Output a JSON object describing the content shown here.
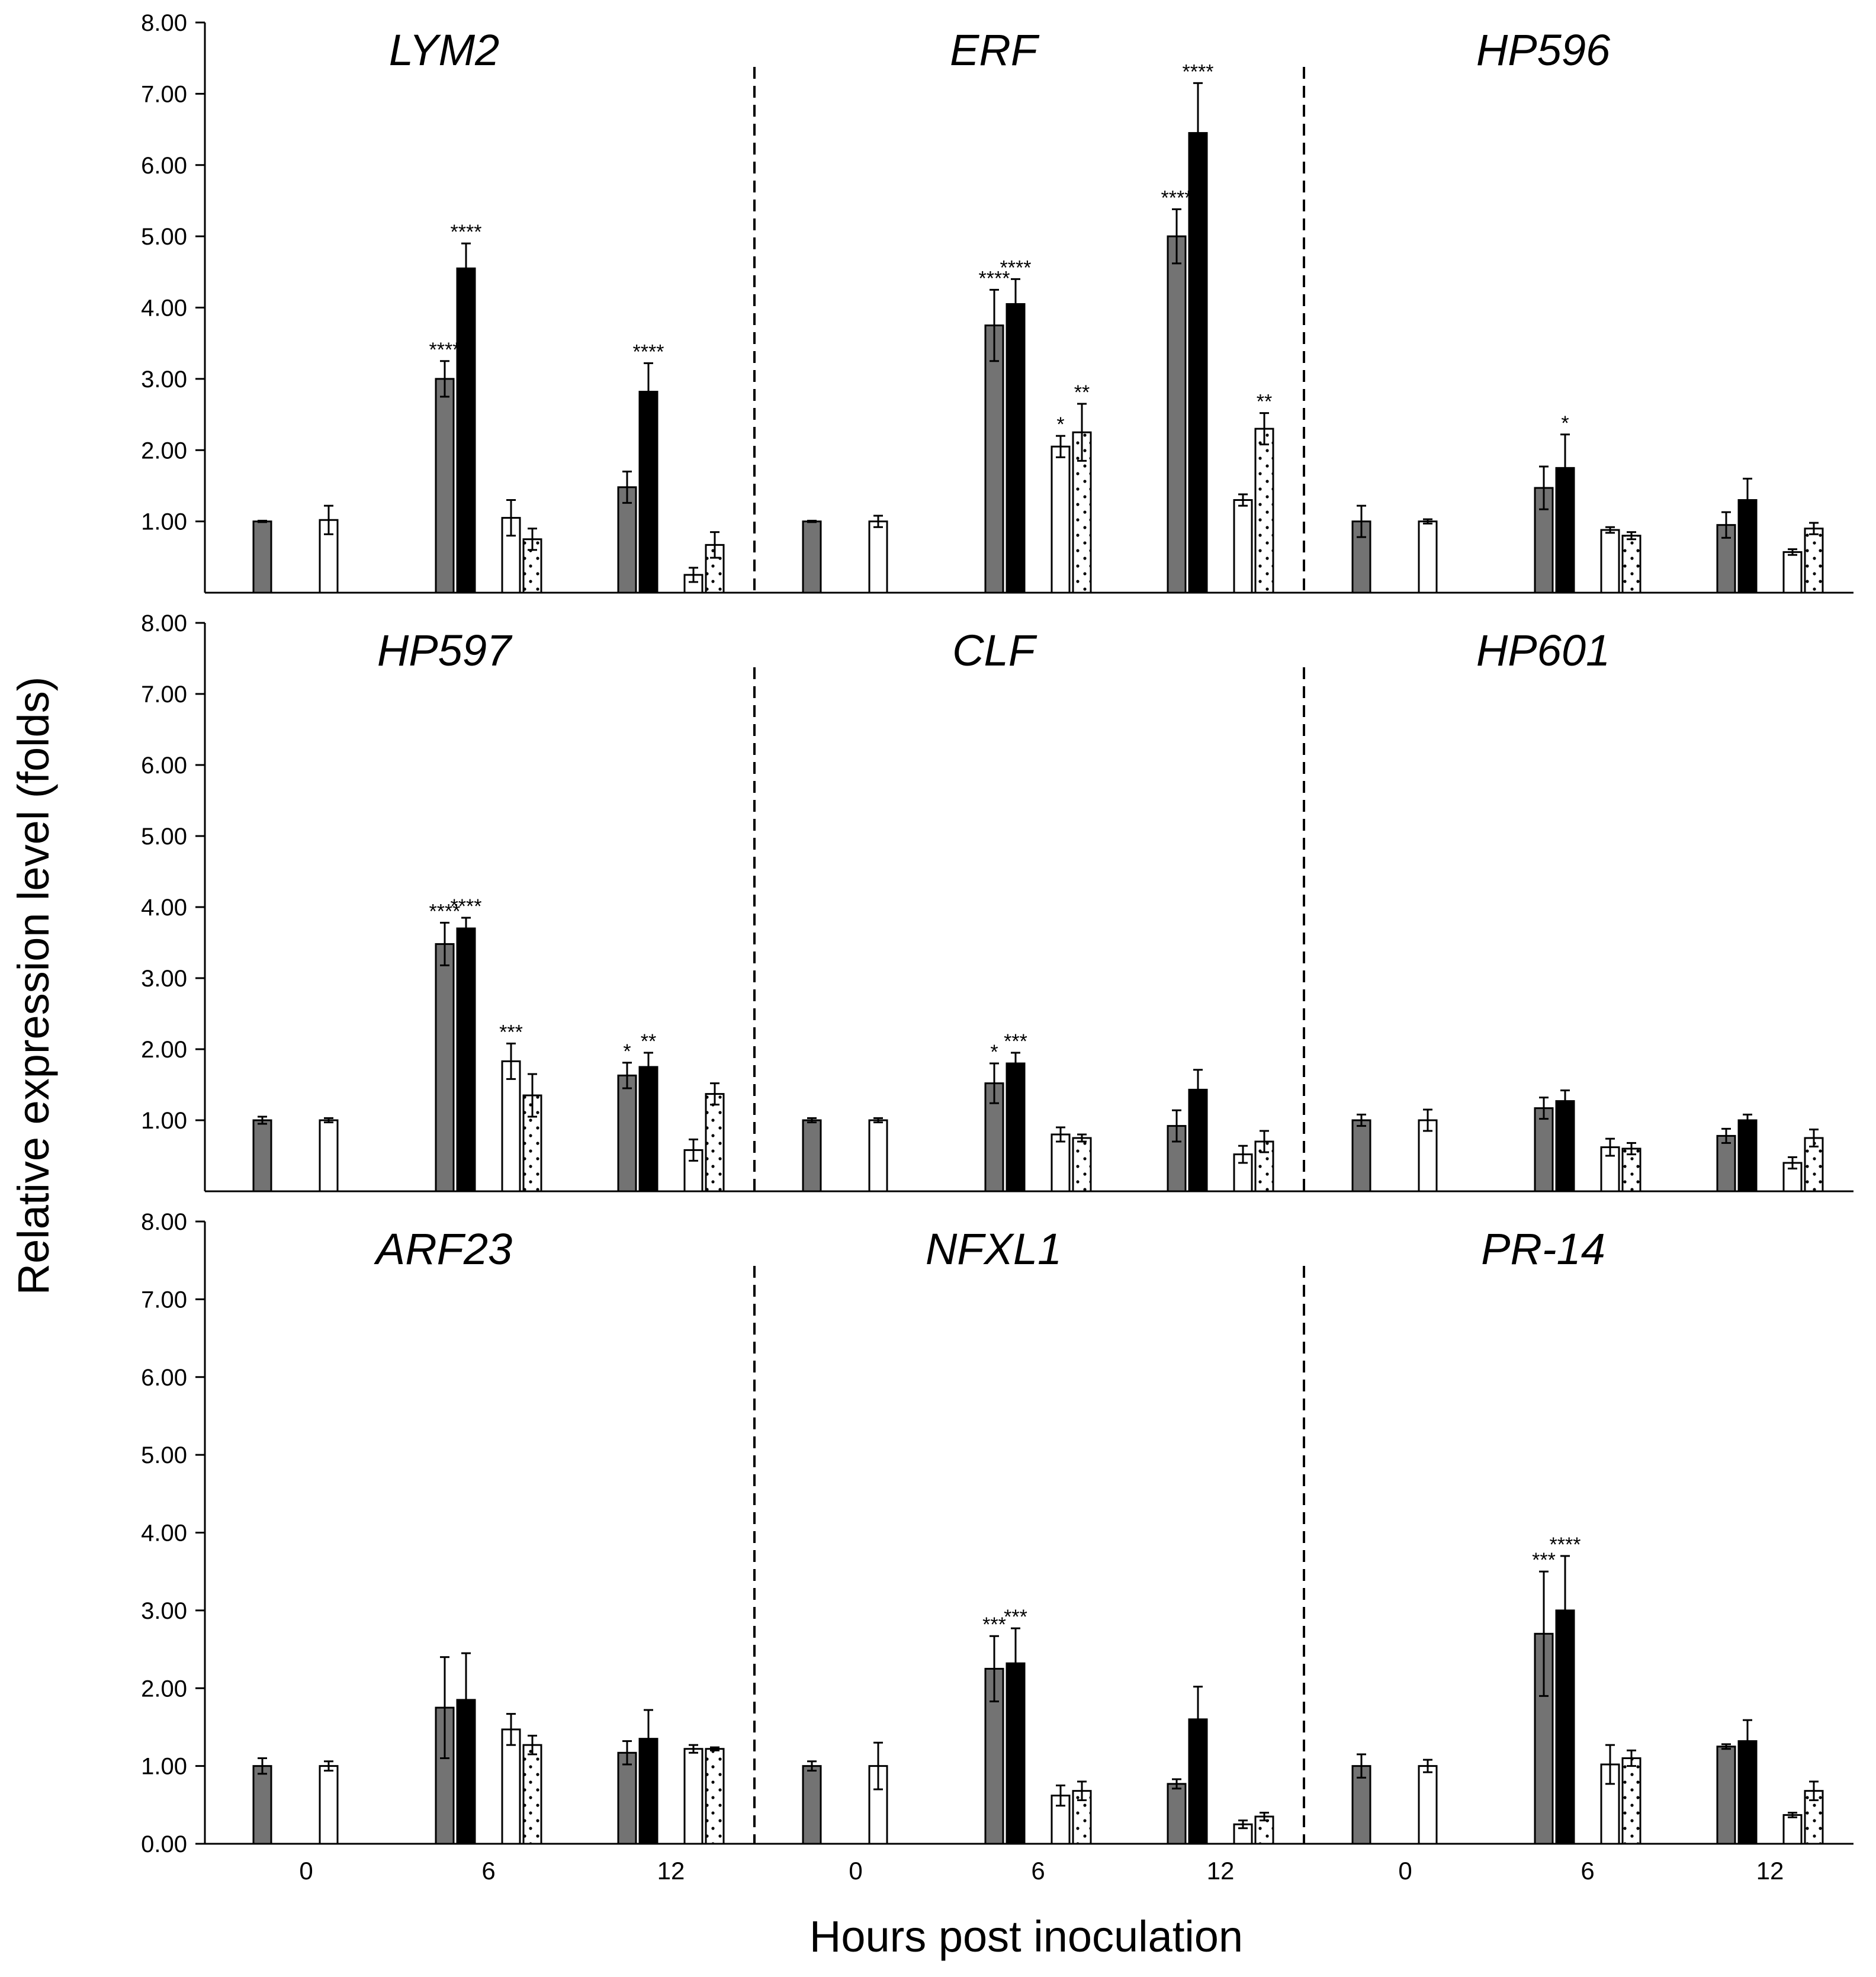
{
  "figure": {
    "ylabel": "Relative expression level (folds)",
    "xlabel": "Hours post inoculation",
    "colors": {
      "gray": "#737373",
      "black": "#000000",
      "white": "#ffffff",
      "axis": "#000000"
    }
  },
  "chart_data": {
    "type": "bar",
    "timepoints": [
      "0",
      "6",
      "12"
    ],
    "bar_styles": [
      "gray",
      "black",
      "white",
      "dotted"
    ],
    "rows": [
      {
        "ylim": [
          0,
          8
        ],
        "ticks": [
          "8.00",
          "7.00",
          "6.00",
          "5.00",
          "4.00",
          "3.00",
          "2.00",
          "1.00"
        ],
        "panels": [
          {
            "title": "LYM2",
            "groups": [
              {
                "bars": [
                  {
                    "v": 1.0,
                    "e": 0.01,
                    "s": ""
                  },
                  null,
                  {
                    "v": 1.02,
                    "e": 0.2,
                    "s": ""
                  },
                  null
                ]
              },
              {
                "bars": [
                  {
                    "v": 3.0,
                    "e": 0.25,
                    "s": "****"
                  },
                  {
                    "v": 4.55,
                    "e": 0.35,
                    "s": "****"
                  },
                  {
                    "v": 1.05,
                    "e": 0.25,
                    "s": ""
                  },
                  {
                    "v": 0.75,
                    "e": 0.15,
                    "s": ""
                  }
                ]
              },
              {
                "bars": [
                  {
                    "v": 1.48,
                    "e": 0.22,
                    "s": ""
                  },
                  {
                    "v": 2.82,
                    "e": 0.4,
                    "s": "****"
                  },
                  {
                    "v": 0.25,
                    "e": 0.1,
                    "s": ""
                  },
                  {
                    "v": 0.67,
                    "e": 0.18,
                    "s": ""
                  }
                ]
              }
            ]
          },
          {
            "title": "ERF",
            "groups": [
              {
                "bars": [
                  {
                    "v": 1.0,
                    "e": 0.01,
                    "s": ""
                  },
                  null,
                  {
                    "v": 1.0,
                    "e": 0.08,
                    "s": ""
                  },
                  null
                ]
              },
              {
                "bars": [
                  {
                    "v": 3.75,
                    "e": 0.5,
                    "s": "****"
                  },
                  {
                    "v": 4.05,
                    "e": 0.35,
                    "s": "****"
                  },
                  {
                    "v": 2.05,
                    "e": 0.15,
                    "s": "*"
                  },
                  {
                    "v": 2.25,
                    "e": 0.4,
                    "s": "**"
                  }
                ]
              },
              {
                "bars": [
                  {
                    "v": 5.0,
                    "e": 0.38,
                    "s": "****"
                  },
                  {
                    "v": 6.45,
                    "e": 0.7,
                    "s": "****"
                  },
                  {
                    "v": 1.3,
                    "e": 0.08,
                    "s": ""
                  },
                  {
                    "v": 2.3,
                    "e": 0.22,
                    "s": "**"
                  }
                ]
              }
            ]
          },
          {
            "title": "HP596",
            "groups": [
              {
                "bars": [
                  {
                    "v": 1.0,
                    "e": 0.22,
                    "s": ""
                  },
                  null,
                  {
                    "v": 1.0,
                    "e": 0.03,
                    "s": ""
                  },
                  null
                ]
              },
              {
                "bars": [
                  {
                    "v": 1.47,
                    "e": 0.3,
                    "s": ""
                  },
                  {
                    "v": 1.75,
                    "e": 0.47,
                    "s": "*"
                  },
                  {
                    "v": 0.88,
                    "e": 0.04,
                    "s": ""
                  },
                  {
                    "v": 0.8,
                    "e": 0.05,
                    "s": ""
                  }
                ]
              },
              {
                "bars": [
                  {
                    "v": 0.95,
                    "e": 0.18,
                    "s": ""
                  },
                  {
                    "v": 1.3,
                    "e": 0.3,
                    "s": ""
                  },
                  {
                    "v": 0.57,
                    "e": 0.04,
                    "s": ""
                  },
                  {
                    "v": 0.9,
                    "e": 0.08,
                    "s": ""
                  }
                ]
              }
            ]
          }
        ]
      },
      {
        "ylim": [
          0,
          8
        ],
        "ticks": [
          "8.00",
          "7.00",
          "6.00",
          "5.00",
          "4.00",
          "3.00",
          "2.00",
          "1.00"
        ],
        "panels": [
          {
            "title": "HP597",
            "groups": [
              {
                "bars": [
                  {
                    "v": 1.0,
                    "e": 0.05,
                    "s": ""
                  },
                  null,
                  {
                    "v": 1.0,
                    "e": 0.03,
                    "s": ""
                  },
                  null
                ]
              },
              {
                "bars": [
                  {
                    "v": 3.48,
                    "e": 0.3,
                    "s": "****"
                  },
                  {
                    "v": 3.7,
                    "e": 0.15,
                    "s": "****"
                  },
                  {
                    "v": 1.83,
                    "e": 0.25,
                    "s": "***"
                  },
                  {
                    "v": 1.35,
                    "e": 0.3,
                    "s": ""
                  }
                ]
              },
              {
                "bars": [
                  {
                    "v": 1.63,
                    "e": 0.18,
                    "s": "*"
                  },
                  {
                    "v": 1.75,
                    "e": 0.2,
                    "s": "**"
                  },
                  {
                    "v": 0.58,
                    "e": 0.15,
                    "s": ""
                  },
                  {
                    "v": 1.37,
                    "e": 0.15,
                    "s": ""
                  }
                ]
              }
            ]
          },
          {
            "title": "CLF",
            "groups": [
              {
                "bars": [
                  {
                    "v": 1.0,
                    "e": 0.03,
                    "s": ""
                  },
                  null,
                  {
                    "v": 1.0,
                    "e": 0.03,
                    "s": ""
                  },
                  null
                ]
              },
              {
                "bars": [
                  {
                    "v": 1.52,
                    "e": 0.28,
                    "s": "*"
                  },
                  {
                    "v": 1.8,
                    "e": 0.15,
                    "s": "***"
                  },
                  {
                    "v": 0.8,
                    "e": 0.1,
                    "s": ""
                  },
                  {
                    "v": 0.75,
                    "e": 0.05,
                    "s": ""
                  }
                ]
              },
              {
                "bars": [
                  {
                    "v": 0.92,
                    "e": 0.22,
                    "s": ""
                  },
                  {
                    "v": 1.43,
                    "e": 0.28,
                    "s": ""
                  },
                  {
                    "v": 0.52,
                    "e": 0.12,
                    "s": ""
                  },
                  {
                    "v": 0.7,
                    "e": 0.15,
                    "s": ""
                  }
                ]
              }
            ]
          },
          {
            "title": "HP601",
            "groups": [
              {
                "bars": [
                  {
                    "v": 1.0,
                    "e": 0.08,
                    "s": ""
                  },
                  null,
                  {
                    "v": 1.0,
                    "e": 0.15,
                    "s": ""
                  },
                  null
                ]
              },
              {
                "bars": [
                  {
                    "v": 1.17,
                    "e": 0.15,
                    "s": ""
                  },
                  {
                    "v": 1.27,
                    "e": 0.15,
                    "s": ""
                  },
                  {
                    "v": 0.62,
                    "e": 0.12,
                    "s": ""
                  },
                  {
                    "v": 0.6,
                    "e": 0.08,
                    "s": ""
                  }
                ]
              },
              {
                "bars": [
                  {
                    "v": 0.78,
                    "e": 0.1,
                    "s": ""
                  },
                  {
                    "v": 1.0,
                    "e": 0.08,
                    "s": ""
                  },
                  {
                    "v": 0.4,
                    "e": 0.08,
                    "s": ""
                  },
                  {
                    "v": 0.75,
                    "e": 0.12,
                    "s": ""
                  }
                ]
              }
            ]
          }
        ]
      },
      {
        "ylim": [
          0,
          8
        ],
        "ticks": [
          "8.00",
          "7.00",
          "6.00",
          "5.00",
          "4.00",
          "3.00",
          "2.00",
          "1.00",
          "0.00"
        ],
        "panels": [
          {
            "title": "ARF23",
            "groups": [
              {
                "bars": [
                  {
                    "v": 1.0,
                    "e": 0.1,
                    "s": ""
                  },
                  null,
                  {
                    "v": 1.0,
                    "e": 0.06,
                    "s": ""
                  },
                  null
                ]
              },
              {
                "bars": [
                  {
                    "v": 1.75,
                    "e": 0.65,
                    "s": ""
                  },
                  {
                    "v": 1.85,
                    "e": 0.6,
                    "s": ""
                  },
                  {
                    "v": 1.47,
                    "e": 0.2,
                    "s": ""
                  },
                  {
                    "v": 1.27,
                    "e": 0.12,
                    "s": ""
                  }
                ]
              },
              {
                "bars": [
                  {
                    "v": 1.17,
                    "e": 0.15,
                    "s": ""
                  },
                  {
                    "v": 1.35,
                    "e": 0.37,
                    "s": ""
                  },
                  {
                    "v": 1.22,
                    "e": 0.05,
                    "s": ""
                  },
                  {
                    "v": 1.22,
                    "e": 0.02,
                    "s": ""
                  }
                ]
              }
            ]
          },
          {
            "title": "NFXL1",
            "groups": [
              {
                "bars": [
                  {
                    "v": 1.0,
                    "e": 0.06,
                    "s": ""
                  },
                  null,
                  {
                    "v": 1.0,
                    "e": 0.3,
                    "s": ""
                  },
                  null
                ]
              },
              {
                "bars": [
                  {
                    "v": 2.25,
                    "e": 0.42,
                    "s": "***"
                  },
                  {
                    "v": 2.32,
                    "e": 0.45,
                    "s": "***"
                  },
                  {
                    "v": 0.62,
                    "e": 0.13,
                    "s": ""
                  },
                  {
                    "v": 0.68,
                    "e": 0.12,
                    "s": ""
                  }
                ]
              },
              {
                "bars": [
                  {
                    "v": 0.77,
                    "e": 0.06,
                    "s": ""
                  },
                  {
                    "v": 1.6,
                    "e": 0.42,
                    "s": ""
                  },
                  {
                    "v": 0.25,
                    "e": 0.05,
                    "s": ""
                  },
                  {
                    "v": 0.35,
                    "e": 0.05,
                    "s": ""
                  }
                ]
              }
            ]
          },
          {
            "title": "PR-14",
            "groups": [
              {
                "bars": [
                  {
                    "v": 1.0,
                    "e": 0.15,
                    "s": ""
                  },
                  null,
                  {
                    "v": 1.0,
                    "e": 0.08,
                    "s": ""
                  },
                  null
                ]
              },
              {
                "bars": [
                  {
                    "v": 2.7,
                    "e": 0.8,
                    "s": "***"
                  },
                  {
                    "v": 3.0,
                    "e": 0.7,
                    "s": "****"
                  },
                  {
                    "v": 1.02,
                    "e": 0.25,
                    "s": ""
                  },
                  {
                    "v": 1.1,
                    "e": 0.1,
                    "s": ""
                  }
                ]
              },
              {
                "bars": [
                  {
                    "v": 1.25,
                    "e": 0.03,
                    "s": ""
                  },
                  {
                    "v": 1.32,
                    "e": 0.27,
                    "s": ""
                  },
                  {
                    "v": 0.37,
                    "e": 0.03,
                    "s": ""
                  },
                  {
                    "v": 0.68,
                    "e": 0.12,
                    "s": ""
                  }
                ]
              }
            ]
          }
        ]
      }
    ]
  }
}
